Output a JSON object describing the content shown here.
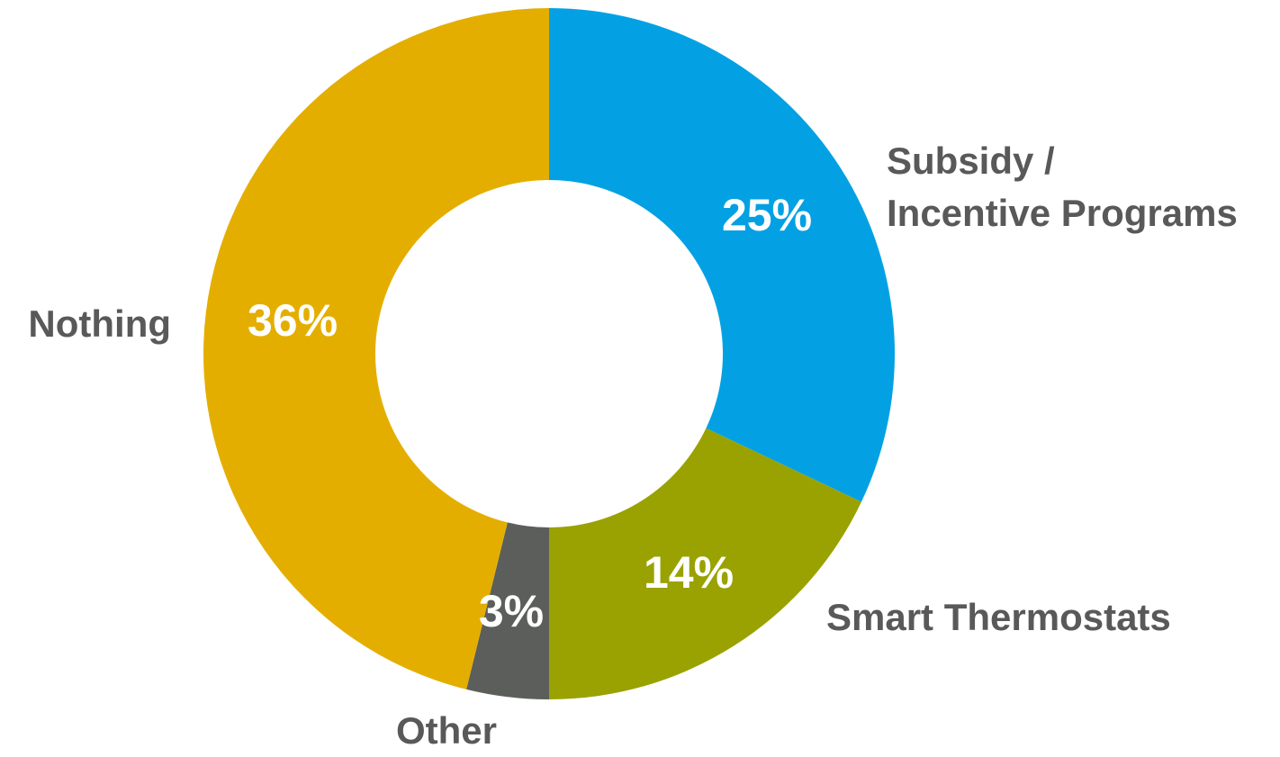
{
  "chart_data": {
    "type": "donut",
    "categories": [
      "Subsidy /\nIncentive Programs",
      "Smart Thermostats",
      "Other",
      "Nothing"
    ],
    "values": [
      25,
      14,
      3,
      36
    ],
    "value_labels": [
      "25%",
      "14%",
      "3%",
      "36%"
    ],
    "colors": [
      "#03a1e3",
      "#99a200",
      "#5c5e5b",
      "#e4ae00"
    ]
  }
}
